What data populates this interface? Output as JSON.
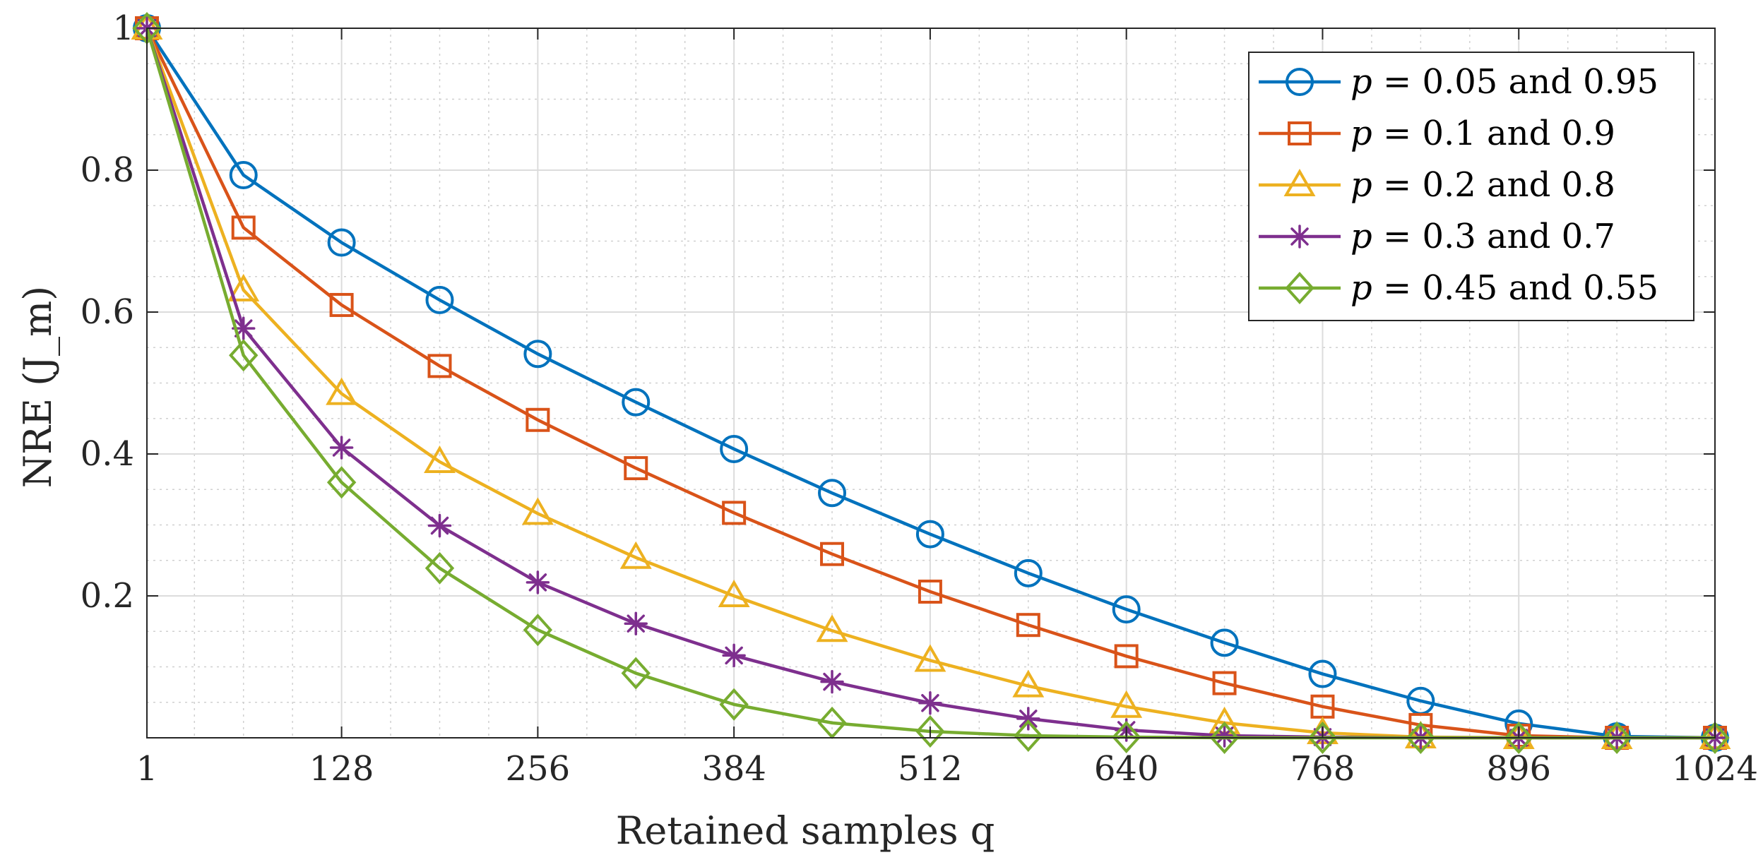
{
  "chart_data": {
    "type": "line",
    "xlabel": "Retained samples q",
    "ylabel": "NRE (J_m)",
    "xlim": [
      1,
      1024
    ],
    "ylim": [
      0,
      1
    ],
    "grid": true,
    "minor_grid": true,
    "legend_position": "top-right",
    "xticks": [
      1,
      128,
      256,
      384,
      512,
      640,
      768,
      896,
      1024
    ],
    "xtick_labels": [
      "1",
      "128",
      "256",
      "384",
      "512",
      "640",
      "768",
      "896",
      "1024"
    ],
    "yticks": [
      0.2,
      0.4,
      0.6,
      0.8,
      1
    ],
    "ytick_labels": [
      "0.2",
      "0.4",
      "0.6",
      "0.8",
      "1"
    ],
    "x": [
      1,
      64,
      128,
      192,
      256,
      320,
      384,
      448,
      512,
      576,
      640,
      704,
      768,
      832,
      896,
      960,
      1024
    ],
    "series": [
      {
        "name": "p = 0.05 and 0.95",
        "p_label": "p",
        "value_label": "= 0.05  and 0.95",
        "color": "#0072BD",
        "marker": "circle",
        "values": [
          1.0,
          0.793,
          0.698,
          0.617,
          0.541,
          0.473,
          0.407,
          0.345,
          0.287,
          0.232,
          0.181,
          0.134,
          0.09,
          0.052,
          0.02,
          0.002,
          0.0
        ]
      },
      {
        "name": "p = 0.1 and 0.9",
        "p_label": "p",
        "value_label": "= 0.1  and 0.9",
        "color": "#D95319",
        "marker": "square",
        "values": [
          1.0,
          0.719,
          0.61,
          0.524,
          0.448,
          0.38,
          0.317,
          0.259,
          0.206,
          0.159,
          0.115,
          0.077,
          0.044,
          0.018,
          0.003,
          0.0,
          0.0
        ]
      },
      {
        "name": "p = 0.2 and 0.8",
        "p_label": "p",
        "value_label": "= 0.2  and 0.8",
        "color": "#EDB120",
        "marker": "triangle",
        "values": [
          1.0,
          0.631,
          0.485,
          0.389,
          0.316,
          0.254,
          0.2,
          0.151,
          0.109,
          0.073,
          0.044,
          0.021,
          0.007,
          0.001,
          0.0,
          0.0,
          0.0
        ]
      },
      {
        "name": "p = 0.3 and 0.7",
        "p_label": "p",
        "value_label": "= 0.3  and 0.7",
        "color": "#7E2F8E",
        "marker": "asterisk",
        "values": [
          1.0,
          0.577,
          0.409,
          0.299,
          0.219,
          0.161,
          0.116,
          0.079,
          0.049,
          0.027,
          0.011,
          0.003,
          0.001,
          0.0,
          0.0,
          0.0,
          0.0
        ]
      },
      {
        "name": "p = 0.45 and 0.55",
        "p_label": "p",
        "value_label": "= 0.45  and 0.55",
        "color": "#77AC30",
        "marker": "diamond",
        "values": [
          1.0,
          0.539,
          0.36,
          0.239,
          0.152,
          0.091,
          0.047,
          0.021,
          0.009,
          0.003,
          0.001,
          0.0,
          0.0,
          0.0,
          0.0,
          0.0,
          0.0
        ]
      }
    ]
  }
}
